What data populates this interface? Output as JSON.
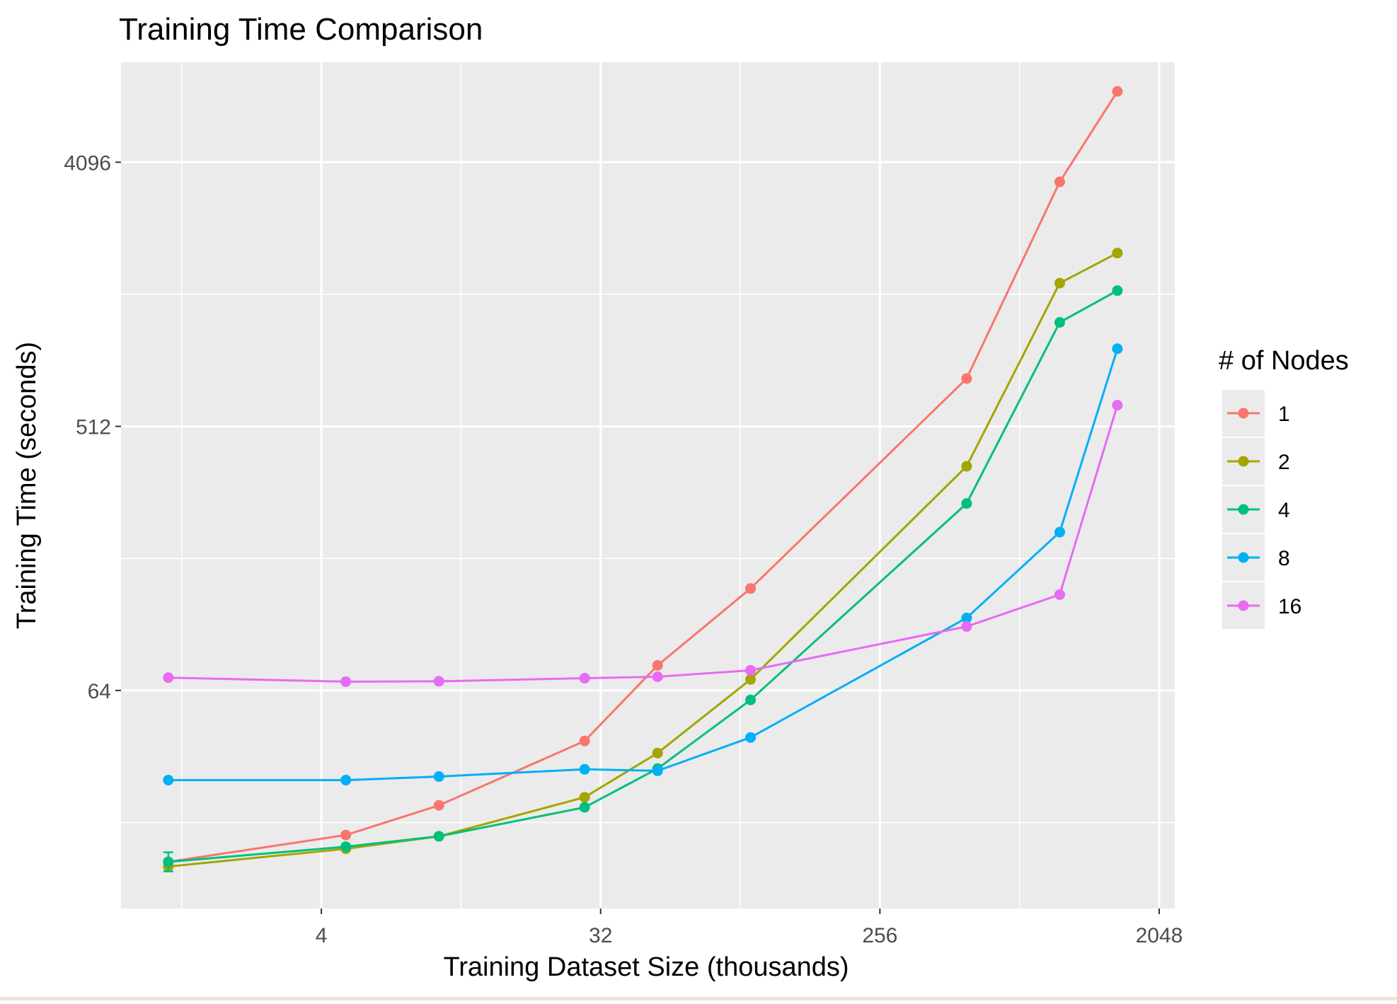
{
  "chart_data": {
    "type": "line",
    "title": "Training Time Comparison",
    "xlabel": "Training Dataset Size (thousands)",
    "ylabel": "Training Time (seconds)",
    "x_scale": "log2",
    "y_scale": "log2",
    "xlim": [
      0.9,
      2300
    ],
    "ylim": [
      11.5,
      9000
    ],
    "x_ticks": [
      4,
      32,
      256,
      2048
    ],
    "x_tick_labels": [
      "4",
      "32",
      "256",
      "2048"
    ],
    "y_ticks": [
      64,
      512,
      4096
    ],
    "y_tick_labels": [
      "64",
      "512",
      "4096"
    ],
    "grid": true,
    "legend": {
      "title": "# of Nodes",
      "position": "right"
    },
    "x": [
      1.28,
      4.8,
      9.6,
      28.4,
      48.9,
      97.7,
      488.3,
      976.6,
      1500
    ],
    "series": [
      {
        "name": "1",
        "color": "#F8766D",
        "values": [
          16.6,
          20.5,
          25.9,
          43.0,
          78.0,
          142.8,
          746.0,
          3511.0,
          7155.0
        ]
      },
      {
        "name": "2",
        "color": "#A3A500",
        "values": [
          16.0,
          18.4,
          20.3,
          27.6,
          39.1,
          69.8,
          374.0,
          1581.0,
          2004.0
        ]
      },
      {
        "name": "4",
        "color": "#00BF7D",
        "values": [
          16.6,
          18.7,
          20.3,
          25.5,
          34.6,
          59.4,
          279.0,
          1161.0,
          1491.0
        ]
      },
      {
        "name": "8",
        "color": "#00B0F6",
        "values": [
          31.6,
          31.6,
          32.5,
          34.4,
          34.0,
          44.2,
          113.3,
          222.6,
          943.4
        ]
      },
      {
        "name": "16",
        "color": "#E76BF3",
        "values": [
          70.8,
          68.6,
          68.8,
          70.5,
          71.3,
          75.0,
          105.9,
          136.1,
          605.0
        ]
      }
    ],
    "error_bars": [
      {
        "series": "4",
        "x": 1.28,
        "low": 15.4,
        "high": 17.9
      }
    ]
  }
}
